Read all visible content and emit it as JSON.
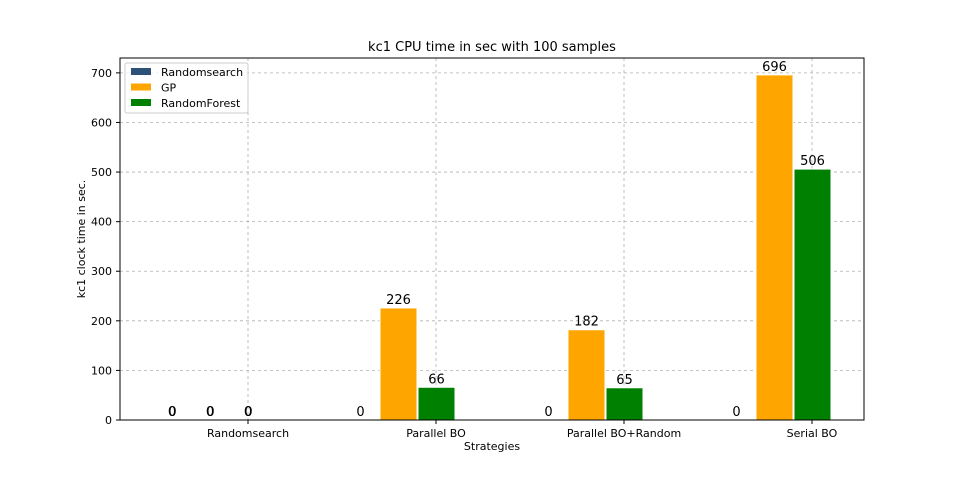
{
  "chart_data": {
    "type": "bar",
    "title": "kc1 CPU time in sec with 100 samples",
    "xlabel": "Strategies",
    "ylabel": "kc1 clock time in sec.",
    "categories": [
      "Randomsearch",
      "Parallel BO",
      "Parallel BO+Random",
      "Serial BO"
    ],
    "series": [
      {
        "name": "Randomsearch",
        "color": "#2e5277",
        "values": [
          0,
          0,
          0,
          0
        ]
      },
      {
        "name": "GP",
        "color": "#ffa500",
        "values": [
          0,
          226,
          182,
          696
        ]
      },
      {
        "name": "RandomForest",
        "color": "#008000",
        "values": [
          0,
          66,
          65,
          506
        ]
      }
    ],
    "extra_labels": [
      "0",
      "0",
      "0"
    ],
    "ylim": [
      0,
      730
    ],
    "yticks": [
      0,
      100,
      200,
      300,
      400,
      500,
      600,
      700
    ],
    "grid": true,
    "legend": "top-left"
  }
}
